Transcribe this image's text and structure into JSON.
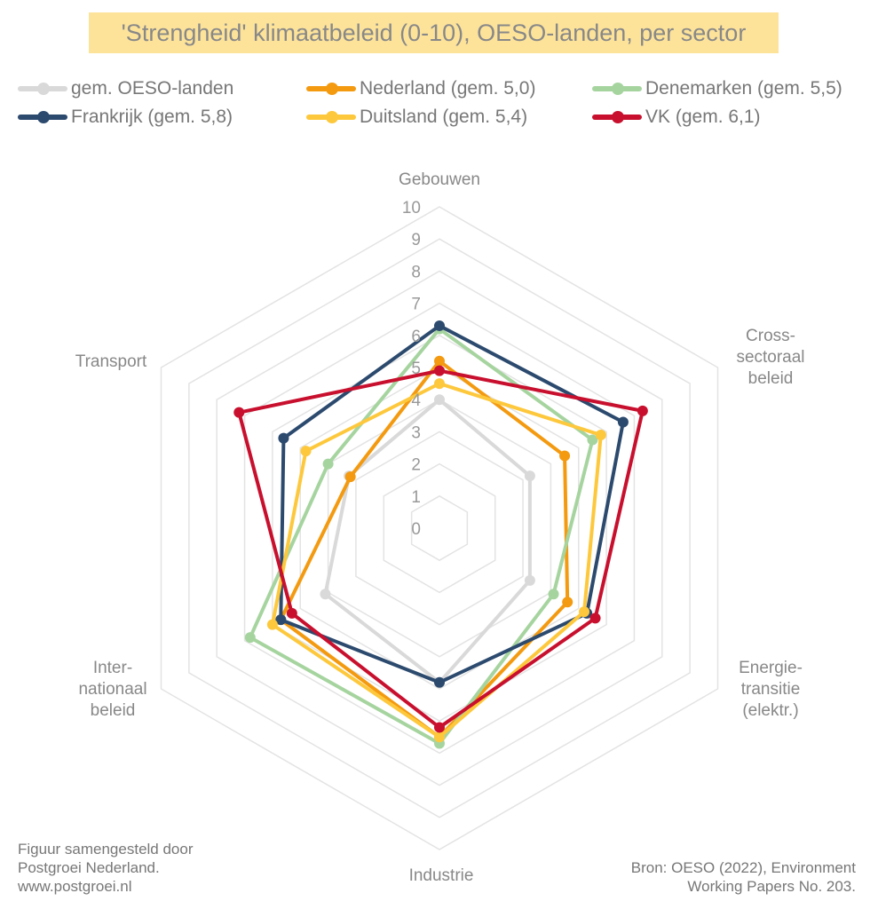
{
  "chart_data": {
    "type": "radar",
    "title": "'Strengheid' klimaatbeleid (0-10), OESO-landen, per sector",
    "axes": [
      "Gebouwen",
      "Cross-sectoraal beleid",
      "Energietransitie (elektr.)",
      "Industrie",
      "Internationaal beleid",
      "Transport"
    ],
    "axis_labels": [
      [
        "Gebouwen"
      ],
      [
        "Cross-",
        "sectoraal",
        "beleid"
      ],
      [
        "Energie-",
        "transitie",
        "(elektr.)"
      ],
      [
        "Industrie"
      ],
      [
        "Inter-",
        "nationaal",
        "beleid"
      ],
      [
        "Transport"
      ]
    ],
    "rlim": [
      0,
      10
    ],
    "ticks": [
      "0",
      "1",
      "2",
      "3",
      "4",
      "5",
      "6",
      "7",
      "8",
      "9",
      "10"
    ],
    "grid": true,
    "legend_position": "top",
    "series": [
      {
        "name": "gem. OESO-landen",
        "color": "#d9d9d9",
        "values": [
          4.0,
          3.25,
          3.25,
          4.8,
          4.1,
          3.25
        ]
      },
      {
        "name": "Nederland (gem. 5,0)",
        "color": "#f39a10",
        "values": [
          5.2,
          4.5,
          4.6,
          6.5,
          5.7,
          3.2
        ]
      },
      {
        "name": "Denemarken (gem. 5,5)",
        "color": "#a6d49f",
        "values": [
          6.2,
          5.5,
          4.1,
          6.7,
          6.8,
          4.0
        ]
      },
      {
        "name": "Frankrijk (gem. 5,8)",
        "color": "#2c4a6e",
        "values": [
          6.3,
          6.6,
          5.3,
          4.8,
          5.7,
          5.6
        ]
      },
      {
        "name": "Duitsland (gem. 5,4)",
        "color": "#fdc83c",
        "values": [
          4.5,
          5.8,
          5.2,
          6.5,
          6.0,
          4.8
        ]
      },
      {
        "name": "VK (gem. 6,1)",
        "color": "#c8102e",
        "values": [
          4.9,
          7.3,
          5.6,
          6.2,
          5.3,
          7.2
        ]
      }
    ]
  },
  "footer": {
    "left": [
      "Figuur samengesteld door",
      "Postgroei Nederland.",
      "www.postgroei.nl"
    ],
    "right": [
      "Bron: OESO (2022), Environment",
      "Working Papers No. 203."
    ]
  }
}
